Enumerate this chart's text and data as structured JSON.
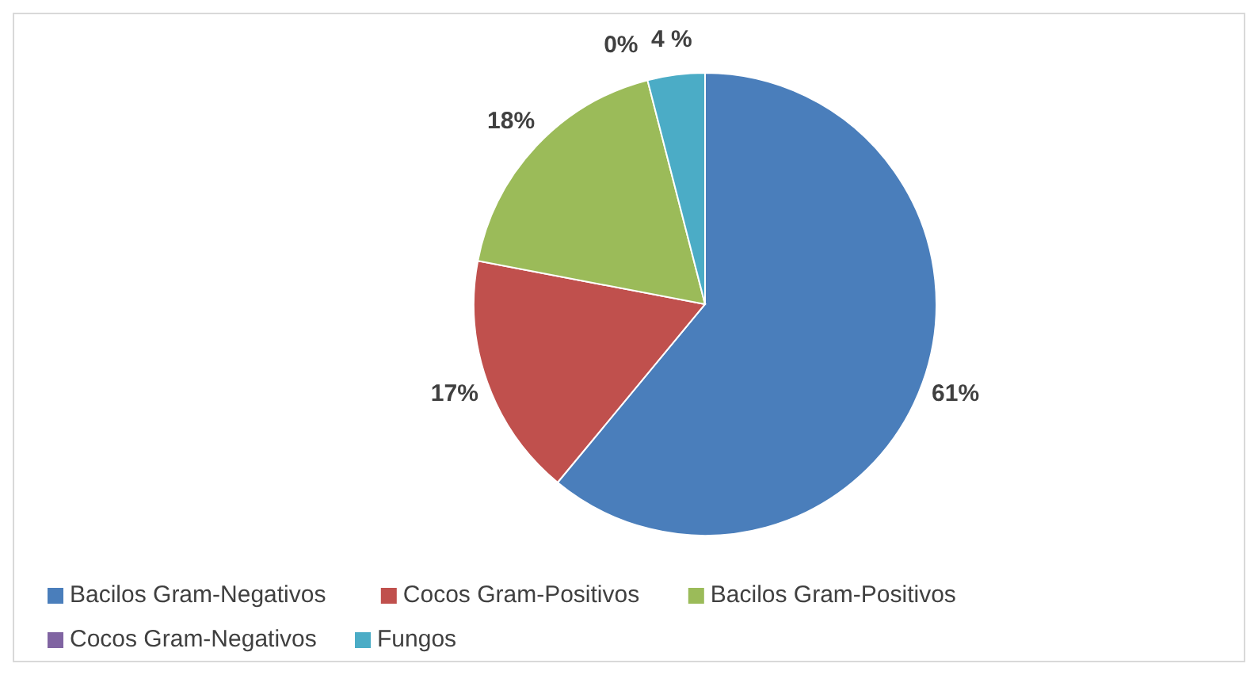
{
  "chart_data": {
    "type": "pie",
    "categories": [
      "Bacilos Gram-Negativos",
      "Cocos Gram-Positivos",
      "Bacilos Gram-Positivos",
      "Cocos Gram-Negativos",
      "Fungos"
    ],
    "values": [
      61,
      17,
      18,
      0,
      4
    ],
    "value_labels": [
      "61%",
      "17%",
      "18%",
      "0%",
      "4 %"
    ],
    "colors": [
      "#4a7ebb",
      "#c0504d",
      "#9bbb59",
      "#8064a2",
      "#4bacc6"
    ],
    "legend": "bottom"
  }
}
